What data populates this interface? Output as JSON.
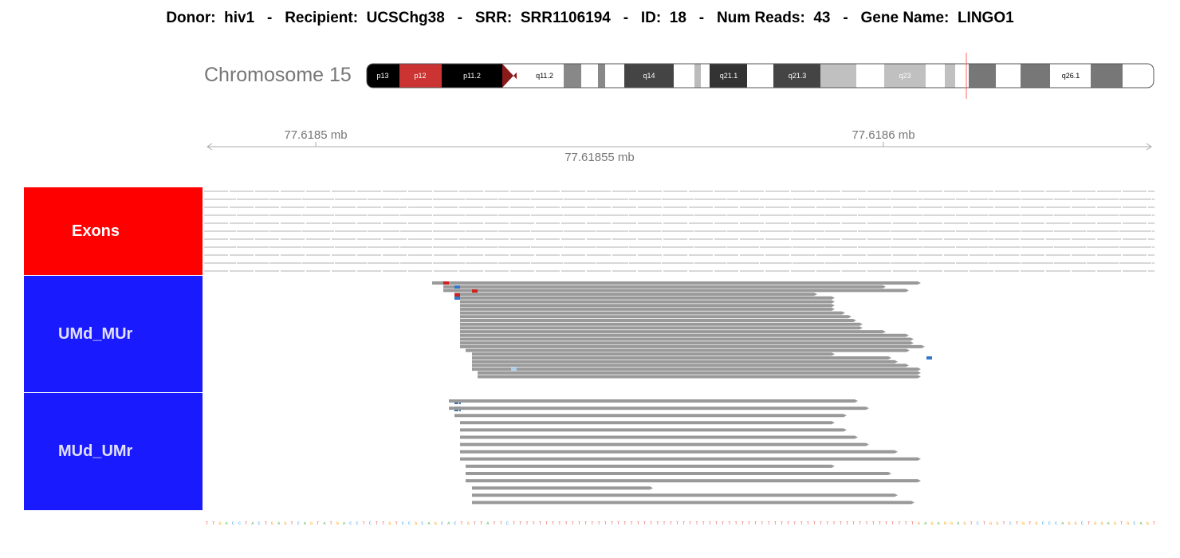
{
  "header": {
    "donor_label": "Donor:",
    "donor": "hiv1",
    "recipient_label": "Recipient:",
    "recipient": "UCSChg38",
    "srr_label": "SRR:",
    "srr": "SRR1106194",
    "id_label": "ID:",
    "id": "18",
    "num_reads_label": "Num Reads:",
    "num_reads": "43",
    "gene_label": "Gene Name:",
    "gene": "LINGO1",
    "separator": "-"
  },
  "chromosome": {
    "label": "Chromosome 15",
    "bands": [
      "p13",
      "p12",
      "p11.2",
      "q11.2",
      "q14",
      "q21.1",
      "q21.3",
      "q23",
      "q26.1"
    ]
  },
  "axis": {
    "ticks_top": [
      "77.6185 mb",
      "77.6186 mb"
    ],
    "tick_mid": "77.61855 mb"
  },
  "tracks": [
    {
      "name": "Exons"
    },
    {
      "name": "UMd_MUr"
    },
    {
      "name": "MUd_UMr"
    }
  ],
  "mismatch_bases": [
    "T",
    "T"
  ],
  "sequence": "TTGACCTACTGAGTCAGTATGACCTCTTGTCCGCAGCACTGTTATTCTTTTTTTTTTTTTTTTTTTTTTTTTTTTTTTTTTTTTTTTTTTTTTTTTTTTTTTTTTTTTTGAGAGGAGTCTGGTCTGTGCCCAGGCTGGAGTGCAGT",
  "colors": {
    "exons_track": "#ff0000",
    "read_track": "#1a1aff",
    "read": "#999999",
    "mismatch_red": "#cc2222",
    "mismatch_blue": "#3377cc",
    "centromere": "#8b1a1a",
    "cursor": "#ff6666"
  }
}
